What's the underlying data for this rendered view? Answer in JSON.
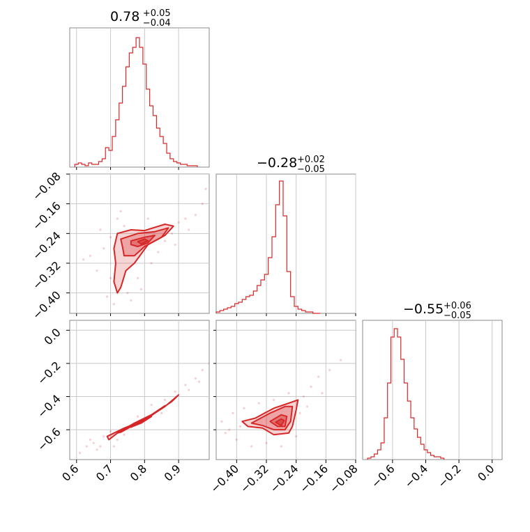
{
  "chart_data": {
    "type": "corner",
    "color": "#d62728",
    "grid": true,
    "parameters": [
      {
        "title": {
          "main": "0.78",
          "sup": "+0.05",
          "sub": "−0.04"
        },
        "range": [
          0.58,
          0.99
        ],
        "ticks": [
          0.6,
          0.7,
          0.8,
          0.9
        ],
        "tick_labels": [
          "0.6",
          "0.7",
          "0.8",
          "0.9"
        ],
        "hist_x": [
          0.6,
          0.61,
          0.62,
          0.63,
          0.64,
          0.65,
          0.66,
          0.67,
          0.68,
          0.69,
          0.7,
          0.71,
          0.72,
          0.73,
          0.74,
          0.75,
          0.76,
          0.77,
          0.78,
          0.79,
          0.8,
          0.81,
          0.82,
          0.83,
          0.84,
          0.85,
          0.86,
          0.87,
          0.88,
          0.89,
          0.9,
          0.91,
          0.92,
          0.93,
          0.94,
          0.95
        ],
        "hist_y": [
          0.02,
          0.03,
          0.02,
          0.01,
          0.03,
          0.02,
          0.02,
          0.04,
          0.06,
          0.14,
          0.12,
          0.22,
          0.34,
          0.46,
          0.58,
          0.72,
          0.82,
          0.86,
          0.93,
          0.86,
          0.74,
          0.56,
          0.44,
          0.37,
          0.28,
          0.22,
          0.17,
          0.1,
          0.06,
          0.04,
          0.03,
          0.02,
          0.02,
          0.01,
          0.01,
          0.01
        ]
      },
      {
        "title": {
          "main": "−0.28",
          "sup": "+0.02",
          "sub": "−0.05"
        },
        "range": [
          -0.455,
          -0.08
        ],
        "ticks": [
          -0.4,
          -0.32,
          -0.24,
          -0.16,
          -0.08
        ],
        "tick_labels": [
          "−0.40",
          "−0.32",
          "−0.24",
          "−0.16",
          "−0.08"
        ],
        "hist_x": [
          -0.45,
          -0.44,
          -0.43,
          -0.42,
          -0.41,
          -0.4,
          -0.39,
          -0.38,
          -0.37,
          -0.36,
          -0.35,
          -0.34,
          -0.33,
          -0.32,
          -0.31,
          -0.3,
          -0.29,
          -0.28,
          -0.27,
          -0.26,
          -0.25,
          -0.24,
          -0.23,
          -0.22,
          -0.21,
          -0.2,
          -0.19,
          -0.18
        ],
        "hist_y": [
          0.01,
          0.02,
          0.03,
          0.04,
          0.05,
          0.07,
          0.08,
          0.1,
          0.12,
          0.13,
          0.16,
          0.2,
          0.24,
          0.28,
          0.4,
          0.55,
          0.78,
          0.95,
          0.7,
          0.3,
          0.12,
          0.05,
          0.03,
          0.02,
          0.01,
          0.01,
          0.0,
          0.0
        ]
      },
      {
        "title": {
          "main": "−0.55",
          "sup": "+0.06",
          "sub": "−0.05"
        },
        "range": [
          -0.78,
          0.06
        ],
        "ticks": [
          -0.6,
          -0.4,
          -0.2,
          0.0
        ],
        "tick_labels": [
          "−0.6",
          "−0.4",
          "−0.2",
          "0.0"
        ],
        "hist_x": [
          -0.74,
          -0.72,
          -0.7,
          -0.68,
          -0.66,
          -0.64,
          -0.62,
          -0.6,
          -0.58,
          -0.56,
          -0.54,
          -0.52,
          -0.5,
          -0.48,
          -0.46,
          -0.44,
          -0.42,
          -0.4,
          -0.38,
          -0.36,
          -0.34,
          -0.32,
          -0.3
        ],
        "hist_y": [
          0.01,
          0.02,
          0.04,
          0.07,
          0.12,
          0.3,
          0.55,
          0.88,
          0.94,
          0.88,
          0.72,
          0.55,
          0.42,
          0.3,
          0.22,
          0.16,
          0.11,
          0.07,
          0.05,
          0.03,
          0.02,
          0.02,
          0.01
        ]
      }
    ],
    "pairs": [
      {
        "row": 1,
        "col": 0,
        "y_ticks": [
          -0.08,
          -0.16,
          -0.24,
          -0.32,
          -0.4
        ],
        "y_tick_labels": [
          "−0.08",
          "−0.16",
          "−0.24",
          "−0.32",
          "−0.40"
        ],
        "contours": [
          [
            [
              0.72,
              -0.24
            ],
            [
              0.76,
              -0.23
            ],
            [
              0.8,
              -0.232
            ],
            [
              0.86,
              -0.215
            ],
            [
              0.885,
              -0.22
            ],
            [
              0.86,
              -0.245
            ],
            [
              0.81,
              -0.27
            ],
            [
              0.77,
              -0.32
            ],
            [
              0.745,
              -0.34
            ],
            [
              0.73,
              -0.385
            ],
            [
              0.72,
              -0.4
            ],
            [
              0.71,
              -0.37
            ],
            [
              0.715,
              -0.32
            ],
            [
              0.71,
              -0.28
            ]
          ],
          [
            [
              0.73,
              -0.255
            ],
            [
              0.78,
              -0.24
            ],
            [
              0.83,
              -0.235
            ],
            [
              0.87,
              -0.225
            ],
            [
              0.85,
              -0.25
            ],
            [
              0.8,
              -0.275
            ],
            [
              0.77,
              -0.3
            ],
            [
              0.74,
              -0.3
            ],
            [
              0.735,
              -0.275
            ]
          ],
          [
            [
              0.76,
              -0.26
            ],
            [
              0.8,
              -0.25
            ],
            [
              0.83,
              -0.245
            ],
            [
              0.81,
              -0.265
            ],
            [
              0.78,
              -0.275
            ],
            [
              0.76,
              -0.27
            ]
          ],
          [
            [
              0.78,
              -0.262
            ],
            [
              0.8,
              -0.255
            ],
            [
              0.81,
              -0.26
            ],
            [
              0.79,
              -0.268
            ]
          ]
        ],
        "scatter": [
          [
            0.64,
            -0.3
          ],
          [
            0.66,
            -0.34
          ],
          [
            0.68,
            -0.28
          ],
          [
            0.69,
            -0.41
          ],
          [
            0.7,
            -0.36
          ],
          [
            0.7,
            -0.25
          ],
          [
            0.71,
            -0.43
          ],
          [
            0.72,
            -0.2
          ],
          [
            0.74,
            -0.22
          ],
          [
            0.75,
            -0.4
          ],
          [
            0.78,
            -0.36
          ],
          [
            0.79,
            -0.39
          ],
          [
            0.82,
            -0.32
          ],
          [
            0.84,
            -0.29
          ],
          [
            0.86,
            -0.26
          ],
          [
            0.88,
            -0.24
          ],
          [
            0.9,
            -0.21
          ],
          [
            0.92,
            -0.2
          ],
          [
            0.95,
            -0.19
          ],
          [
            0.97,
            -0.16
          ],
          [
            0.93,
            -0.23
          ],
          [
            0.89,
            -0.27
          ],
          [
            0.76,
            -0.42
          ],
          [
            0.73,
            -0.18
          ],
          [
            0.67,
            -0.23
          ],
          [
            0.98,
            -0.12
          ],
          [
            0.62,
            -0.31
          ],
          [
            0.81,
            -0.2
          ]
        ]
      },
      {
        "row": 2,
        "col": 0,
        "y_ticks": [
          0.0,
          -0.2,
          -0.4,
          -0.6
        ],
        "y_tick_labels": [
          "0.0",
          "−0.2",
          "−0.4",
          "−0.6"
        ],
        "contours": [
          [
            [
              0.69,
              -0.64
            ],
            [
              0.74,
              -0.59
            ],
            [
              0.8,
              -0.54
            ],
            [
              0.86,
              -0.46
            ],
            [
              0.9,
              -0.39
            ],
            [
              0.88,
              -0.43
            ],
            [
              0.83,
              -0.5
            ],
            [
              0.77,
              -0.56
            ],
            [
              0.72,
              -0.62
            ],
            [
              0.695,
              -0.66
            ]
          ],
          [
            [
              0.72,
              -0.62
            ],
            [
              0.76,
              -0.58
            ],
            [
              0.81,
              -0.53
            ],
            [
              0.85,
              -0.47
            ],
            [
              0.86,
              -0.455
            ],
            [
              0.82,
              -0.51
            ],
            [
              0.77,
              -0.57
            ],
            [
              0.73,
              -0.615
            ]
          ],
          [
            [
              0.76,
              -0.585
            ],
            [
              0.8,
              -0.545
            ],
            [
              0.82,
              -0.52
            ],
            [
              0.79,
              -0.56
            ],
            [
              0.765,
              -0.58
            ]
          ]
        ],
        "scatter": [
          [
            0.61,
            -0.74
          ],
          [
            0.63,
            -0.7
          ],
          [
            0.65,
            -0.68
          ],
          [
            0.67,
            -0.7
          ],
          [
            0.68,
            -0.64
          ],
          [
            0.7,
            -0.61
          ],
          [
            0.72,
            -0.66
          ],
          [
            0.74,
            -0.63
          ],
          [
            0.78,
            -0.52
          ],
          [
            0.82,
            -0.45
          ],
          [
            0.86,
            -0.42
          ],
          [
            0.89,
            -0.37
          ],
          [
            0.92,
            -0.33
          ],
          [
            0.95,
            -0.29
          ],
          [
            0.97,
            -0.24
          ],
          [
            0.99,
            -0.2
          ],
          [
            0.93,
            -0.36
          ],
          [
            0.85,
            -0.5
          ],
          [
            0.66,
            -0.72
          ],
          [
            0.71,
            -0.7
          ],
          [
            0.96,
            -0.31
          ],
          [
            0.64,
            -0.66
          ]
        ]
      },
      {
        "row": 2,
        "col": 1,
        "contours": [
          [
            [
              -0.385,
              -0.55
            ],
            [
              -0.35,
              -0.53
            ],
            [
              -0.3,
              -0.47
            ],
            [
              -0.26,
              -0.44
            ],
            [
              -0.235,
              -0.42
            ],
            [
              -0.24,
              -0.48
            ],
            [
              -0.25,
              -0.58
            ],
            [
              -0.26,
              -0.62
            ],
            [
              -0.3,
              -0.63
            ],
            [
              -0.33,
              -0.59
            ],
            [
              -0.37,
              -0.58
            ]
          ],
          [
            [
              -0.36,
              -0.56
            ],
            [
              -0.31,
              -0.5
            ],
            [
              -0.27,
              -0.46
            ],
            [
              -0.25,
              -0.46
            ],
            [
              -0.255,
              -0.55
            ],
            [
              -0.27,
              -0.6
            ],
            [
              -0.3,
              -0.6
            ],
            [
              -0.33,
              -0.575
            ]
          ],
          [
            [
              -0.31,
              -0.55
            ],
            [
              -0.28,
              -0.51
            ],
            [
              -0.265,
              -0.52
            ],
            [
              -0.27,
              -0.58
            ],
            [
              -0.29,
              -0.58
            ]
          ],
          [
            [
              -0.295,
              -0.555
            ],
            [
              -0.28,
              -0.535
            ],
            [
              -0.272,
              -0.545
            ],
            [
              -0.28,
              -0.575
            ]
          ]
        ],
        "scatter": [
          [
            -0.44,
            -0.55
          ],
          [
            -0.42,
            -0.6
          ],
          [
            -0.41,
            -0.5
          ],
          [
            -0.4,
            -0.66
          ],
          [
            -0.38,
            -0.47
          ],
          [
            -0.36,
            -0.7
          ],
          [
            -0.34,
            -0.44
          ],
          [
            -0.32,
            -0.68
          ],
          [
            -0.3,
            -0.42
          ],
          [
            -0.28,
            -0.7
          ],
          [
            -0.26,
            -0.38
          ],
          [
            -0.24,
            -0.64
          ],
          [
            -0.22,
            -0.4
          ],
          [
            -0.2,
            -0.34
          ],
          [
            -0.18,
            -0.28
          ],
          [
            -0.15,
            -0.24
          ],
          [
            -0.12,
            -0.18
          ],
          [
            -0.23,
            -0.5
          ],
          [
            -0.21,
            -0.46
          ],
          [
            -0.43,
            -0.62
          ],
          [
            -0.39,
            -0.58
          ],
          [
            -0.17,
            -0.38
          ]
        ]
      }
    ]
  }
}
